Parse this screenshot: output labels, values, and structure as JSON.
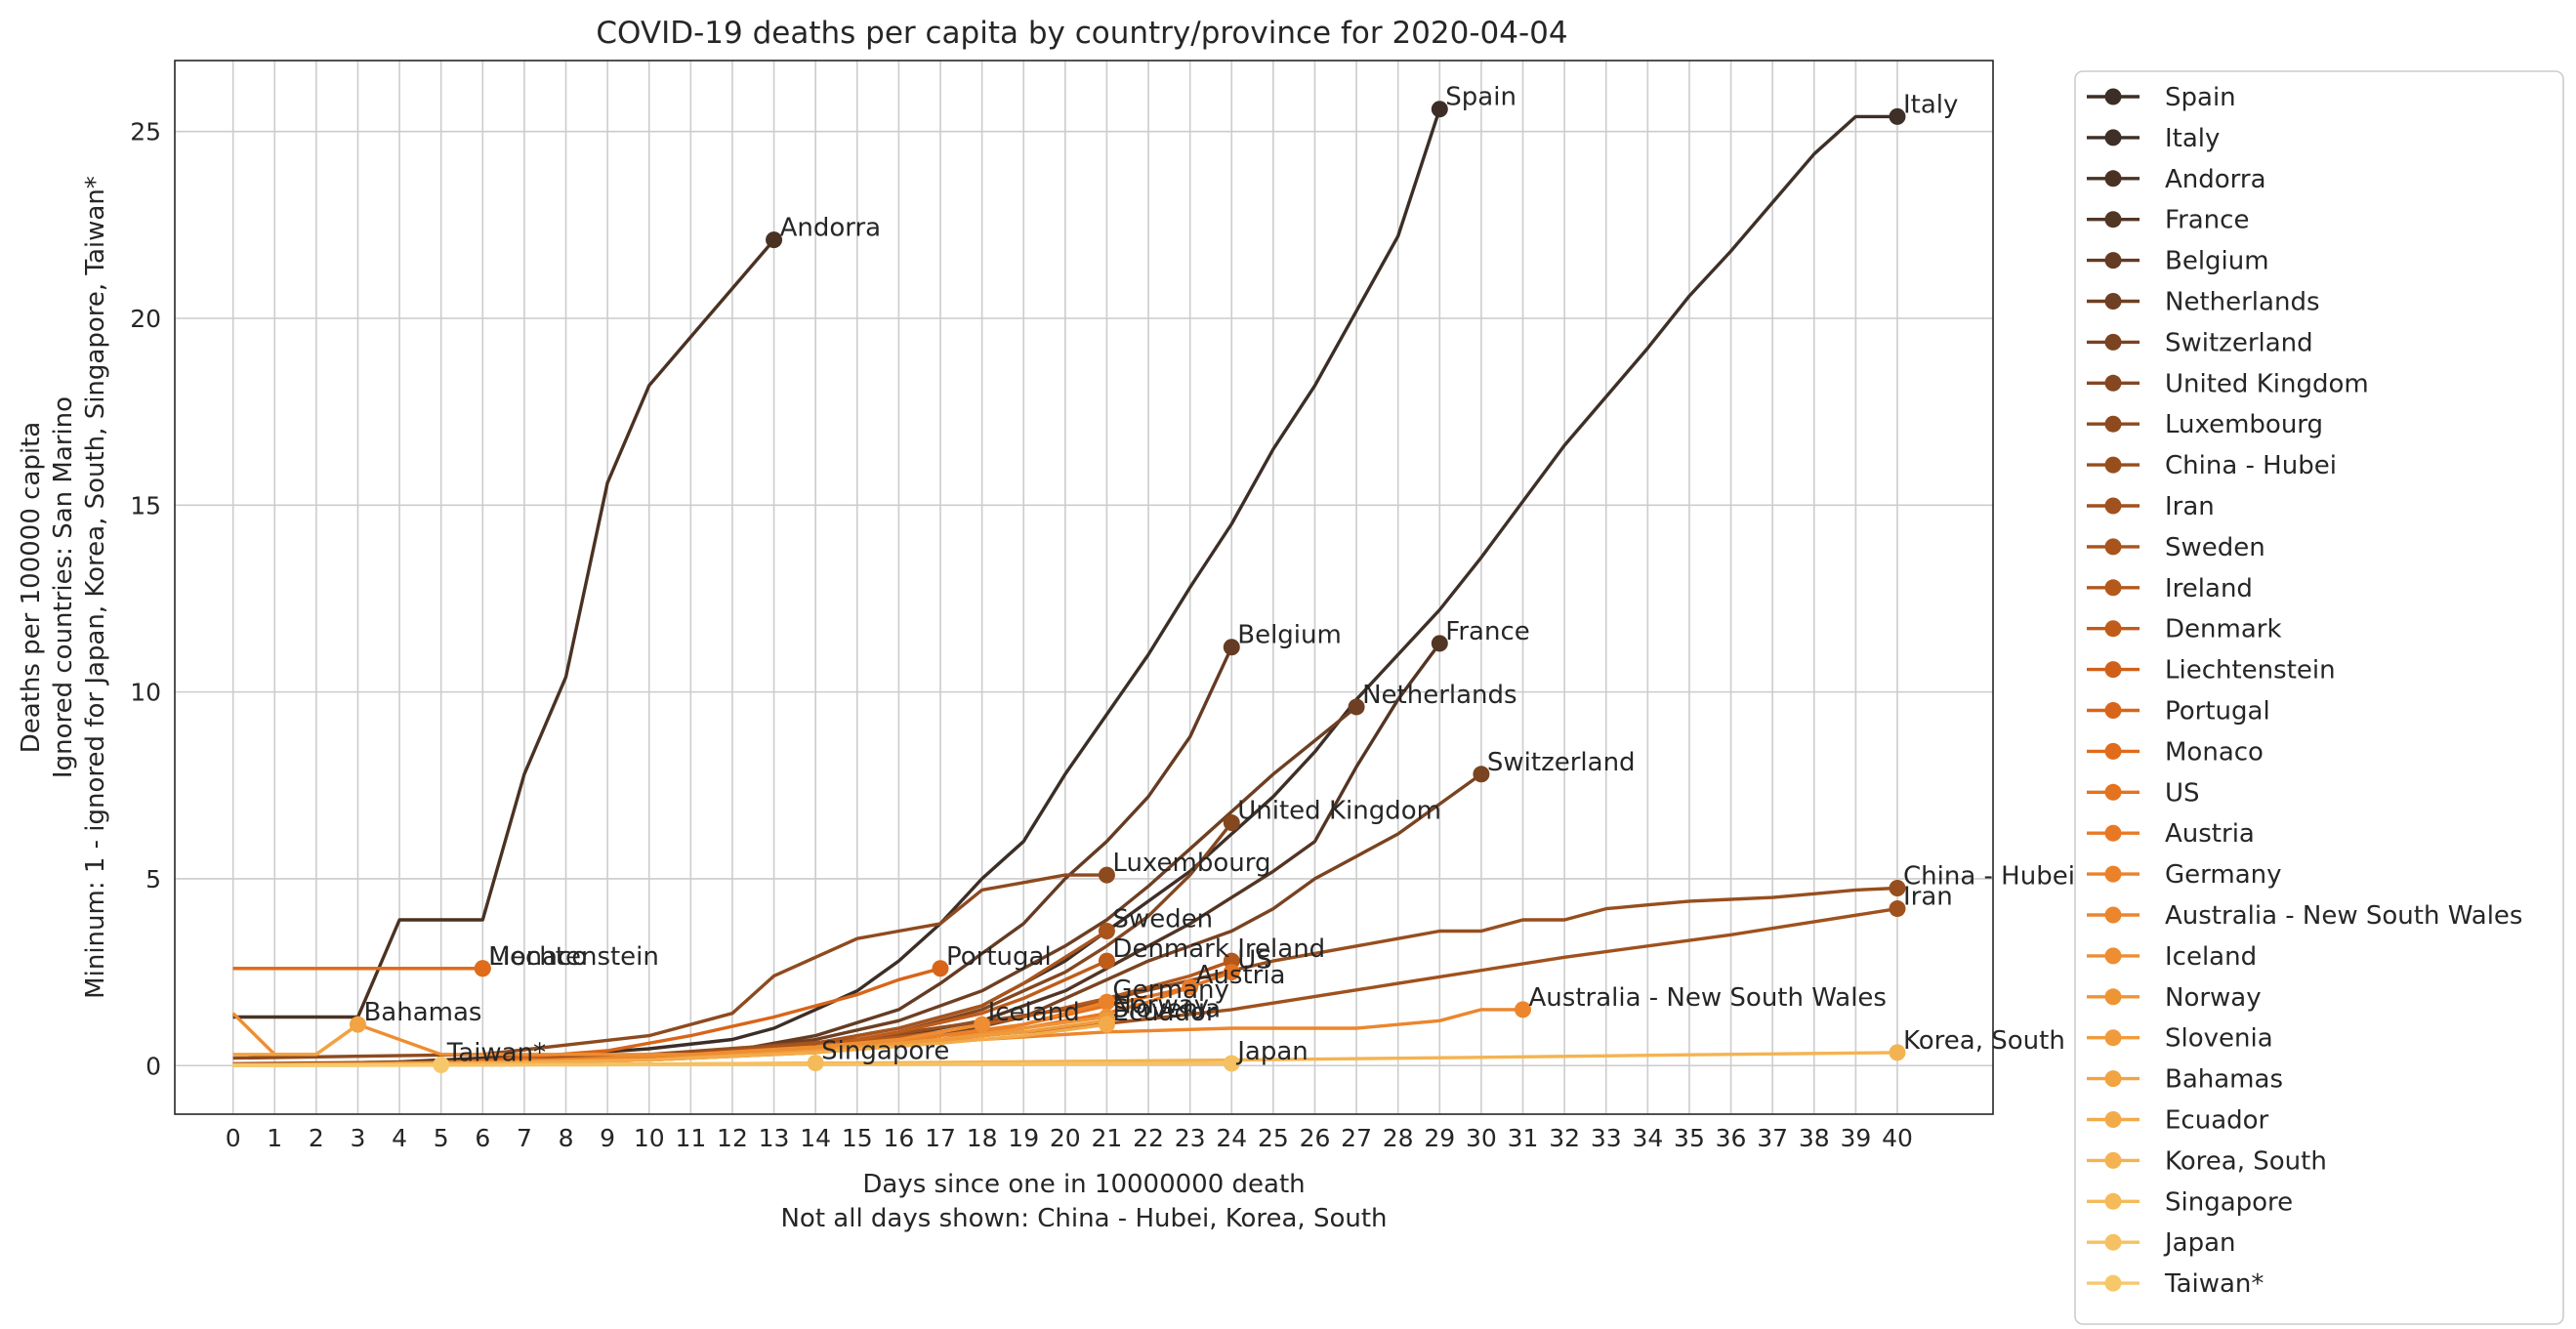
{
  "chart_data": {
    "type": "line",
    "title": "COVID-19 deaths per capita by country/province for 2020-04-04",
    "xlabel": [
      "Days since one in 10000000 death",
      "Not all days shown: China - Hubei, Korea, South"
    ],
    "ylabel": [
      "Deaths per 100000 capita",
      "Ignored countries: San Marino",
      "Mininum: 1 - ignored for Japan, Korea, South, Singapore, Taiwan*"
    ],
    "xlim": [
      -1.4,
      42.3
    ],
    "ylim": [
      -1.3,
      26.9
    ],
    "x_ticks": [
      0,
      1,
      2,
      3,
      4,
      5,
      6,
      7,
      8,
      9,
      10,
      11,
      12,
      13,
      14,
      15,
      16,
      17,
      18,
      19,
      20,
      21,
      22,
      23,
      24,
      25,
      26,
      27,
      28,
      29,
      30,
      31,
      32,
      33,
      34,
      35,
      36,
      37,
      38,
      39,
      40
    ],
    "y_ticks": [
      0,
      5,
      10,
      15,
      20,
      25
    ],
    "grid": true,
    "legend_position": "outside-right",
    "series": [
      {
        "name": "Spain",
        "color": "#3c2e26",
        "label": "Spain",
        "x": [
          0,
          2,
          4,
          6,
          8,
          10,
          12,
          13,
          14,
          15,
          16,
          17,
          18,
          19,
          20,
          21,
          22,
          23,
          24,
          25,
          26,
          27,
          28,
          29
        ],
        "y": [
          0.02,
          0.05,
          0.1,
          0.2,
          0.3,
          0.45,
          0.7,
          1.0,
          1.5,
          2.0,
          2.8,
          3.8,
          5.0,
          6.0,
          7.8,
          9.4,
          11.0,
          12.8,
          14.5,
          16.5,
          18.2,
          20.2,
          22.2,
          25.6
        ]
      },
      {
        "name": "Italy",
        "color": "#3e2f27",
        "label": "Italy",
        "x": [
          0,
          3,
          6,
          9,
          12,
          14,
          16,
          18,
          20,
          21,
          22,
          23,
          24,
          25,
          26,
          27,
          28,
          29,
          30,
          31,
          32,
          33,
          34,
          35,
          36,
          37,
          38,
          39,
          40
        ],
        "y": [
          0.02,
          0.05,
          0.1,
          0.2,
          0.4,
          0.6,
          1.0,
          1.6,
          2.8,
          3.6,
          4.4,
          5.2,
          6.2,
          7.2,
          8.4,
          9.8,
          11.0,
          12.2,
          13.6,
          15.1,
          16.6,
          17.9,
          19.2,
          20.6,
          21.8,
          23.1,
          24.4,
          25.4,
          25.4
        ]
      },
      {
        "name": "Andorra",
        "color": "#4a3223",
        "label": "Andorra",
        "x": [
          0,
          1,
          2,
          3,
          4,
          5,
          6,
          7,
          8,
          9,
          10,
          11,
          12,
          13
        ],
        "y": [
          1.3,
          1.3,
          1.3,
          1.3,
          3.9,
          3.9,
          3.9,
          7.8,
          10.4,
          15.6,
          18.2,
          19.5,
          20.8,
          22.1
        ]
      },
      {
        "name": "France",
        "color": "#533524",
        "label": "France",
        "x": [
          0,
          3,
          6,
          9,
          12,
          15,
          18,
          20,
          21,
          22,
          23,
          24,
          25,
          26,
          27,
          28,
          29
        ],
        "y": [
          0.02,
          0.05,
          0.1,
          0.2,
          0.35,
          0.6,
          1.2,
          2.0,
          2.6,
          3.2,
          3.8,
          4.5,
          5.2,
          6.0,
          8.0,
          9.8,
          11.3
        ]
      },
      {
        "name": "Belgium",
        "color": "#643b23",
        "label": "Belgium",
        "x": [
          0,
          3,
          6,
          9,
          12,
          14,
          16,
          17,
          18,
          19,
          20,
          21,
          22,
          23,
          24
        ],
        "y": [
          0.02,
          0.05,
          0.1,
          0.2,
          0.4,
          0.8,
          1.5,
          2.2,
          3.0,
          3.8,
          5.0,
          6.0,
          7.2,
          8.8,
          11.2
        ]
      },
      {
        "name": "Netherlands",
        "color": "#6e3f22",
        "label": "Netherlands",
        "x": [
          0,
          3,
          6,
          9,
          12,
          14,
          16,
          18,
          19,
          20,
          21,
          22,
          23,
          24,
          25,
          26,
          27
        ],
        "y": [
          0.02,
          0.05,
          0.1,
          0.2,
          0.4,
          0.7,
          1.2,
          2.0,
          2.6,
          3.2,
          3.9,
          4.8,
          5.8,
          6.8,
          7.8,
          8.7,
          9.6
        ]
      },
      {
        "name": "Switzerland",
        "color": "#7a4321",
        "label": "Switzerland",
        "x": [
          0,
          3,
          6,
          9,
          12,
          15,
          17,
          19,
          20,
          21,
          22,
          23,
          24,
          25,
          26,
          27,
          28,
          29,
          30
        ],
        "y": [
          0.02,
          0.05,
          0.1,
          0.2,
          0.3,
          0.5,
          0.8,
          1.3,
          1.8,
          2.3,
          2.8,
          3.2,
          3.6,
          4.2,
          5.0,
          5.6,
          6.2,
          7.0,
          7.8
        ]
      },
      {
        "name": "United Kingdom",
        "color": "#844720",
        "label": "United Kingdom",
        "x": [
          0,
          3,
          6,
          9,
          12,
          14,
          16,
          18,
          19,
          20,
          21,
          22,
          23,
          24
        ],
        "y": [
          0.02,
          0.05,
          0.1,
          0.2,
          0.3,
          0.5,
          0.9,
          1.5,
          2.0,
          2.5,
          3.2,
          4.0,
          5.1,
          6.5
        ]
      },
      {
        "name": "Luxembourg",
        "color": "#8e4a1f",
        "label": "Luxembourg",
        "x": [
          0,
          6,
          10,
          12,
          13,
          14,
          15,
          16,
          17,
          18,
          19,
          20,
          21
        ],
        "y": [
          0.2,
          0.3,
          0.8,
          1.4,
          2.4,
          2.9,
          3.4,
          3.6,
          3.8,
          4.7,
          4.9,
          5.1,
          5.1
        ]
      },
      {
        "name": "China - Hubei",
        "color": "#974e1e",
        "label": "China - Hubei",
        "x": [
          0,
          5,
          10,
          15,
          20,
          25,
          28,
          29,
          30,
          31,
          32,
          33,
          34,
          35,
          36,
          37,
          38,
          39,
          40
        ],
        "y": [
          0.05,
          0.1,
          0.3,
          0.7,
          1.5,
          2.8,
          3.4,
          3.6,
          3.6,
          3.9,
          3.9,
          4.2,
          4.3,
          4.4,
          4.45,
          4.5,
          4.6,
          4.7,
          4.75
        ]
      },
      {
        "name": "Iran",
        "color": "#a0511d",
        "label": "Iran",
        "x": [
          0,
          4,
          8,
          12,
          16,
          20,
          24,
          28,
          32,
          36,
          40
        ],
        "y": [
          0.02,
          0.05,
          0.15,
          0.3,
          0.6,
          1.0,
          1.5,
          2.2,
          2.9,
          3.5,
          4.2
        ]
      },
      {
        "name": "Sweden",
        "color": "#a9541c",
        "label": "Sweden",
        "x": [
          0,
          5,
          10,
          14,
          16,
          18,
          19,
          20,
          21
        ],
        "y": [
          0.02,
          0.05,
          0.2,
          0.6,
          1.0,
          1.6,
          2.2,
          2.9,
          3.6
        ]
      },
      {
        "name": "Ireland",
        "color": "#b4581b",
        "label": "Ireland",
        "x": [
          0,
          5,
          10,
          14,
          17,
          19,
          21,
          22,
          23,
          24
        ],
        "y": [
          0.02,
          0.05,
          0.2,
          0.5,
          0.9,
          1.3,
          1.8,
          2.1,
          2.4,
          2.8
        ]
      },
      {
        "name": "Denmark",
        "color": "#bf5c1a",
        "label": "Denmark",
        "x": [
          0,
          5,
          10,
          14,
          16,
          18,
          19,
          20,
          21
        ],
        "y": [
          0.02,
          0.05,
          0.2,
          0.5,
          0.9,
          1.4,
          1.8,
          2.3,
          2.8
        ]
      },
      {
        "name": "Liechtenstein",
        "color": "#d06019",
        "label": "Liechtenstein",
        "x": [
          0,
          1,
          2,
          3,
          4,
          5,
          6
        ],
        "y": [
          2.6,
          2.6,
          2.6,
          2.6,
          2.6,
          2.6,
          2.6
        ]
      },
      {
        "name": "Portugal",
        "color": "#d86519",
        "label": "Portugal",
        "x": [
          0,
          5,
          9,
          11,
          13,
          15,
          16,
          17
        ],
        "y": [
          0.02,
          0.05,
          0.4,
          0.8,
          1.3,
          1.9,
          2.3,
          2.6
        ]
      },
      {
        "name": "Monaco",
        "color": "#e06b1b",
        "label": "Monaco",
        "x": [
          0,
          1,
          2,
          3,
          4,
          5,
          6
        ],
        "y": [
          2.6,
          2.6,
          2.6,
          2.6,
          2.6,
          2.6,
          2.6
        ]
      },
      {
        "name": "US",
        "color": "#e4721f",
        "label": "US",
        "x": [
          0,
          5,
          10,
          14,
          17,
          19,
          21,
          23,
          24
        ],
        "y": [
          0.02,
          0.05,
          0.15,
          0.35,
          0.7,
          1.1,
          1.6,
          2.1,
          2.5
        ]
      },
      {
        "name": "Austria",
        "color": "#e87924",
        "label": "Austria",
        "x": [
          0,
          5,
          10,
          14,
          17,
          19,
          21,
          22,
          23
        ],
        "y": [
          0.02,
          0.05,
          0.15,
          0.35,
          0.7,
          1.0,
          1.4,
          1.7,
          2.1
        ]
      },
      {
        "name": "Germany",
        "color": "#eb8129",
        "label": "Germany",
        "x": [
          0,
          5,
          10,
          14,
          17,
          19,
          20,
          21
        ],
        "y": [
          0.02,
          0.05,
          0.15,
          0.4,
          0.8,
          1.1,
          1.4,
          1.7
        ]
      },
      {
        "name": "Australia - New South Wales",
        "color": "#ec862c",
        "label": "Australia - New South Wales",
        "x": [
          0,
          3,
          6,
          9,
          12,
          15,
          18,
          21,
          24,
          27,
          29,
          30,
          31
        ],
        "y": [
          0.02,
          0.05,
          0.1,
          0.2,
          0.35,
          0.5,
          0.7,
          0.9,
          1.0,
          1.0,
          1.2,
          1.5,
          1.5
        ]
      },
      {
        "name": "Iceland",
        "color": "#ee8d31",
        "label": "Iceland",
        "x": [
          0,
          1,
          2,
          3,
          5,
          8,
          11,
          14,
          16,
          17,
          18
        ],
        "y": [
          1.4,
          0.3,
          0.3,
          1.1,
          0.3,
          0.3,
          0.3,
          0.5,
          0.7,
          0.9,
          1.1
        ]
      },
      {
        "name": "Norway",
        "color": "#ef9435",
        "label": "Norway",
        "x": [
          0,
          5,
          10,
          14,
          17,
          19,
          21
        ],
        "y": [
          0.02,
          0.05,
          0.15,
          0.4,
          0.7,
          1.0,
          1.3
        ]
      },
      {
        "name": "Slovenia",
        "color": "#f09b3b",
        "label": "Slovenia",
        "x": [
          0,
          5,
          10,
          14,
          17,
          19,
          21
        ],
        "y": [
          0.02,
          0.05,
          0.15,
          0.4,
          0.7,
          0.9,
          1.2
        ]
      },
      {
        "name": "Bahamas",
        "color": "#f2a342",
        "label": "Bahamas",
        "x": [
          0,
          1,
          2,
          3
        ],
        "y": [
          0.3,
          0.3,
          0.3,
          1.1
        ]
      },
      {
        "name": "Ecuador",
        "color": "#f3ab4a",
        "label": "Ecuador",
        "x": [
          0,
          5,
          10,
          14,
          17,
          19,
          21
        ],
        "y": [
          0.02,
          0.05,
          0.15,
          0.35,
          0.6,
          0.8,
          1.1
        ]
      },
      {
        "name": "Korea, South",
        "color": "#f4b352",
        "label": "Korea, South",
        "x": [
          0,
          5,
          10,
          15,
          20,
          25,
          30,
          35,
          40
        ],
        "y": [
          0.01,
          0.02,
          0.04,
          0.07,
          0.11,
          0.16,
          0.22,
          0.29,
          0.35
        ]
      },
      {
        "name": "Singapore",
        "color": "#f5ba5a",
        "label": "Singapore",
        "x": [
          0,
          3,
          6,
          9,
          12,
          14
        ],
        "y": [
          0.005,
          0.01,
          0.02,
          0.03,
          0.05,
          0.07
        ]
      },
      {
        "name": "Japan",
        "color": "#f6c162",
        "label": "Japan",
        "x": [
          0,
          4,
          8,
          12,
          16,
          20,
          24
        ],
        "y": [
          0.005,
          0.01,
          0.02,
          0.03,
          0.04,
          0.05,
          0.06
        ]
      },
      {
        "name": "Taiwan*",
        "color": "#f7c86a",
        "label": "Taiwan*",
        "x": [
          0,
          1,
          2,
          3,
          4,
          5
        ],
        "y": [
          0.01,
          0.01,
          0.01,
          0.01,
          0.02,
          0.02
        ]
      }
    ]
  }
}
